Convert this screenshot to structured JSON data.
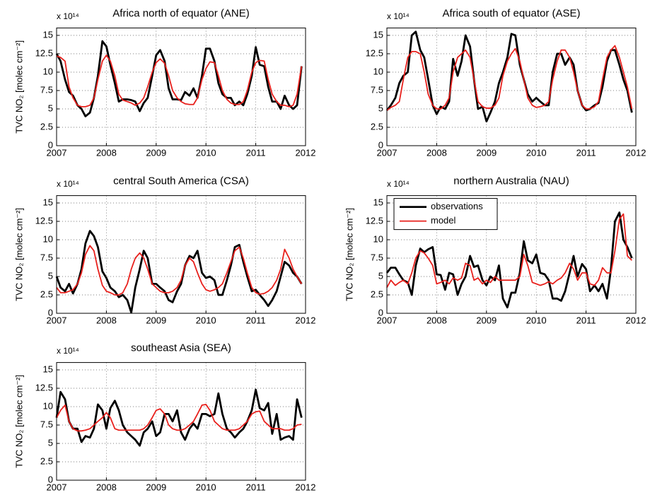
{
  "chart_data": [
    {
      "type": "line",
      "title": "Africa north of equator (ANE)",
      "y_label": "TVC NO₂ [molec cm⁻²]",
      "y_multiplier": "x 10¹⁴",
      "x": [
        2007,
        2007.08,
        2007.17,
        2007.25,
        2007.33,
        2007.42,
        2007.5,
        2007.58,
        2007.67,
        2007.75,
        2007.83,
        2007.92,
        2008,
        2008.08,
        2008.17,
        2008.25,
        2008.33,
        2008.42,
        2008.5,
        2008.58,
        2008.67,
        2008.75,
        2008.83,
        2008.92,
        2009,
        2009.08,
        2009.17,
        2009.25,
        2009.33,
        2009.42,
        2009.5,
        2009.58,
        2009.67,
        2009.75,
        2009.83,
        2009.92,
        2010,
        2010.08,
        2010.17,
        2010.25,
        2010.33,
        2010.42,
        2010.5,
        2010.58,
        2010.67,
        2010.75,
        2010.83,
        2010.92,
        2011,
        2011.08,
        2011.17,
        2011.25,
        2011.33,
        2011.42,
        2011.5,
        2011.58,
        2011.67,
        2011.75,
        2011.83,
        2011.92
      ],
      "series": [
        {
          "color": "#000000",
          "values": [
            12.5,
            11.5,
            9,
            7.3,
            6.8,
            5.5,
            5,
            4,
            4.5,
            6.5,
            9.5,
            14.2,
            13.5,
            11,
            8.5,
            6,
            6.3,
            6.3,
            6.2,
            6,
            4.7,
            5.8,
            6.5,
            9.5,
            12.3,
            13,
            11.5,
            7.8,
            6.3,
            6.3,
            6.2,
            7.3,
            6.8,
            7.8,
            6.5,
            9.5,
            13.2,
            13.2,
            11.5,
            8.5,
            7,
            6.5,
            6.5,
            5.5,
            6,
            5.5,
            7,
            9.5,
            13.4,
            11,
            10.8,
            8,
            6,
            6,
            5,
            6.8,
            5.5,
            5,
            5.5,
            10.8
          ]
        },
        {
          "color": "#e8201c",
          "values": [
            12.2,
            12,
            11.5,
            8,
            6.5,
            5.5,
            5.3,
            5.3,
            5.5,
            6.5,
            9,
            11.5,
            12.3,
            11.5,
            9.5,
            7,
            6.2,
            6,
            5.8,
            5.5,
            5.8,
            6.5,
            8,
            10,
            11.3,
            11.8,
            11.2,
            9.5,
            7.5,
            6.5,
            6,
            5.7,
            5.6,
            5.6,
            6.5,
            9,
            10.5,
            11.4,
            11.3,
            9.5,
            7.5,
            6.3,
            5.8,
            5.6,
            5.6,
            6,
            7.5,
            10,
            11.3,
            11.6,
            11.5,
            9,
            7,
            6,
            5.5,
            5.5,
            5.3,
            5.5,
            7,
            10.8
          ]
        }
      ],
      "xlim": [
        2007,
        2012
      ],
      "xticks": [
        2007,
        2008,
        2009,
        2010,
        2011,
        2012
      ],
      "ylim": [
        0,
        16
      ],
      "yticks": [
        0,
        2.5,
        5,
        7.5,
        10,
        12.5,
        15
      ],
      "grid": true
    },
    {
      "type": "line",
      "title": "Africa south of equator (ASE)",
      "y_multiplier": "x 10¹⁴",
      "x": [
        2007,
        2007.08,
        2007.17,
        2007.25,
        2007.33,
        2007.42,
        2007.5,
        2007.58,
        2007.67,
        2007.75,
        2007.83,
        2007.92,
        2008,
        2008.08,
        2008.17,
        2008.25,
        2008.33,
        2008.42,
        2008.5,
        2008.58,
        2008.67,
        2008.75,
        2008.83,
        2008.92,
        2009,
        2009.08,
        2009.17,
        2009.25,
        2009.33,
        2009.42,
        2009.5,
        2009.58,
        2009.67,
        2009.75,
        2009.83,
        2009.92,
        2010,
        2010.08,
        2010.17,
        2010.25,
        2010.33,
        2010.42,
        2010.5,
        2010.58,
        2010.67,
        2010.75,
        2010.83,
        2010.92,
        2011,
        2011.08,
        2011.17,
        2011.25,
        2011.33,
        2011.42,
        2011.5,
        2011.58,
        2011.67,
        2011.75,
        2011.83,
        2011.92
      ],
      "series": [
        {
          "color": "#000000",
          "values": [
            4.8,
            5.5,
            6.5,
            8.5,
            9.5,
            10,
            15,
            15.5,
            13,
            12,
            9,
            5.5,
            4.3,
            5.3,
            5,
            6,
            11.8,
            9.5,
            11.5,
            15,
            13.5,
            9,
            5,
            5.3,
            3.3,
            4.5,
            6,
            8.5,
            10,
            12,
            15.2,
            15,
            11,
            9,
            7,
            6,
            6.5,
            6,
            5.5,
            5.5,
            10,
            12.5,
            12.5,
            11,
            12,
            11,
            7.5,
            5.5,
            4.8,
            5,
            5.5,
            5.8,
            8,
            11.5,
            13,
            13,
            11,
            9,
            7.5,
            4.5
          ]
        },
        {
          "color": "#e8201c",
          "values": [
            4.8,
            5.2,
            5.5,
            6,
            9,
            12,
            12.8,
            12.8,
            12.5,
            10,
            7,
            5.5,
            5,
            5,
            5.5,
            6.5,
            10,
            12,
            12.5,
            13,
            12,
            9,
            6,
            5.3,
            5.1,
            5.1,
            5.5,
            6.5,
            9.5,
            11.5,
            12.5,
            13.2,
            11.5,
            9,
            6.5,
            5.5,
            5.2,
            5.3,
            5.5,
            6,
            9,
            11.5,
            13,
            13,
            12,
            10,
            7.5,
            5.5,
            5,
            5,
            5.3,
            6,
            9,
            12,
            13,
            13.6,
            12,
            10,
            8,
            5
          ]
        }
      ],
      "xlim": [
        2007,
        2012
      ],
      "xticks": [
        2007,
        2008,
        2009,
        2010,
        2011,
        2012
      ],
      "ylim": [
        0,
        16
      ],
      "yticks": [
        0,
        2.5,
        5,
        7.5,
        10,
        12.5,
        15
      ],
      "grid": true
    },
    {
      "type": "line",
      "title": "central South America (CSA)",
      "y_label": "TVC NO₂ [molec cm⁻²]",
      "y_multiplier": "x 10¹⁴",
      "x": [
        2007,
        2007.08,
        2007.17,
        2007.25,
        2007.33,
        2007.42,
        2007.5,
        2007.58,
        2007.67,
        2007.75,
        2007.83,
        2007.92,
        2008,
        2008.08,
        2008.17,
        2008.25,
        2008.33,
        2008.42,
        2008.5,
        2008.58,
        2008.67,
        2008.75,
        2008.83,
        2008.92,
        2009,
        2009.08,
        2009.17,
        2009.25,
        2009.33,
        2009.42,
        2009.5,
        2009.58,
        2009.67,
        2009.75,
        2009.83,
        2009.92,
        2010,
        2010.08,
        2010.17,
        2010.25,
        2010.33,
        2010.42,
        2010.5,
        2010.58,
        2010.67,
        2010.75,
        2010.83,
        2010.92,
        2011,
        2011.08,
        2011.17,
        2011.25,
        2011.33,
        2011.42,
        2011.5,
        2011.58,
        2011.67,
        2011.75,
        2011.83,
        2011.92
      ],
      "series": [
        {
          "color": "#000000",
          "values": [
            5,
            3.5,
            3,
            4,
            2.7,
            4,
            6,
            9.5,
            11.2,
            10.5,
            9,
            5.7,
            4.8,
            3.5,
            3,
            2.2,
            2.5,
            1.8,
            0.1,
            3.5,
            6,
            8.5,
            7.5,
            4,
            4,
            3.5,
            3,
            1.8,
            1.5,
            3,
            4,
            6.5,
            7.8,
            7.5,
            8.5,
            5.5,
            4.8,
            5,
            4.5,
            2.5,
            2.5,
            4.5,
            6.5,
            9,
            9.3,
            7,
            5,
            3,
            3.2,
            2.5,
            1.8,
            1,
            1.8,
            3,
            5,
            7,
            6.5,
            5.5,
            5,
            4
          ]
        },
        {
          "color": "#e8201c",
          "values": [
            3.5,
            2.8,
            2.8,
            3,
            3.2,
            4,
            5.5,
            8,
            9.2,
            8.5,
            6,
            3.8,
            3,
            2.8,
            2.5,
            2.5,
            2.8,
            4,
            6,
            7.5,
            8.2,
            7.5,
            6,
            4,
            3.5,
            3,
            2.8,
            2.8,
            3,
            3.5,
            4.5,
            6.5,
            7.5,
            7,
            5.5,
            4,
            3.2,
            3,
            3.2,
            3.5,
            4,
            5.5,
            7,
            8.5,
            9,
            7.5,
            5.5,
            3.5,
            2.8,
            2.6,
            2.7,
            3,
            3.5,
            4.5,
            6,
            8.7,
            7.5,
            6,
            5,
            4
          ]
        }
      ],
      "xlim": [
        2007,
        2012
      ],
      "xticks": [
        2007,
        2008,
        2009,
        2010,
        2011,
        2012
      ],
      "ylim": [
        0,
        16
      ],
      "yticks": [
        0,
        2.5,
        5,
        7.5,
        10,
        12.5,
        15
      ],
      "grid": true
    },
    {
      "type": "line",
      "title": "northern Australia (NAU)",
      "y_label": "TVC NO₂ [molec cm⁻²]",
      "y_multiplier": "x 10¹⁴",
      "legend": "upper left",
      "x": [
        2007,
        2007.08,
        2007.17,
        2007.25,
        2007.33,
        2007.42,
        2007.5,
        2007.58,
        2007.67,
        2007.75,
        2007.83,
        2007.92,
        2008,
        2008.08,
        2008.17,
        2008.25,
        2008.33,
        2008.42,
        2008.5,
        2008.58,
        2008.67,
        2008.75,
        2008.83,
        2008.92,
        2009,
        2009.08,
        2009.17,
        2009.25,
        2009.33,
        2009.42,
        2009.5,
        2009.58,
        2009.67,
        2009.75,
        2009.83,
        2009.92,
        2010,
        2010.08,
        2010.17,
        2010.25,
        2010.33,
        2010.42,
        2010.5,
        2010.58,
        2010.67,
        2010.75,
        2010.83,
        2010.92,
        2011,
        2011.08,
        2011.17,
        2011.25,
        2011.33,
        2011.42,
        2011.5,
        2011.58,
        2011.67,
        2011.75,
        2011.83,
        2011.92
      ],
      "series": [
        {
          "name": "observations",
          "color": "#000000",
          "values": [
            5.5,
            6.2,
            6.2,
            5.3,
            4.5,
            4.2,
            2.5,
            6.5,
            8.8,
            8.3,
            8.7,
            9,
            5.3,
            5.2,
            3.2,
            5.5,
            5.3,
            2.5,
            4,
            5,
            7.8,
            6.3,
            6.5,
            4.5,
            3.8,
            5,
            4.5,
            6.5,
            2,
            0.8,
            2.8,
            2.8,
            5.5,
            9.8,
            7.2,
            6.8,
            8,
            5.5,
            5.3,
            4.5,
            2,
            2,
            1.7,
            3,
            5.5,
            7.8,
            5,
            6.7,
            6,
            3,
            3.8,
            3,
            4,
            2,
            6,
            12.5,
            13.7,
            10,
            9,
            7.5
          ]
        },
        {
          "name": "model",
          "color": "#e8201c",
          "values": [
            3.5,
            4.5,
            3.8,
            4.2,
            4.5,
            4,
            5.5,
            7.5,
            8.5,
            8.2,
            7.5,
            6.5,
            4,
            4.2,
            4.5,
            4,
            4.8,
            4.5,
            4.8,
            6.8,
            6.5,
            4.5,
            4.8,
            4,
            4.5,
            4.2,
            5,
            4.5,
            4.5,
            4.5,
            4.5,
            4.5,
            5,
            8,
            6.5,
            4.2,
            4,
            3.8,
            4,
            4.3,
            4,
            4.5,
            4.8,
            5.5,
            6.8,
            6,
            4.5,
            5.5,
            5.5,
            4,
            3.8,
            4.5,
            6.2,
            5.5,
            5.5,
            8.5,
            12.8,
            13.5,
            7.8,
            7.2
          ]
        }
      ],
      "xlim": [
        2007,
        2012
      ],
      "xticks": [
        2007,
        2008,
        2009,
        2010,
        2011,
        2012
      ],
      "ylim": [
        0,
        16
      ],
      "yticks": [
        0,
        2.5,
        5,
        7.5,
        10,
        12.5,
        15
      ],
      "grid": true
    },
    {
      "type": "line",
      "title": "southeast Asia (SEA)",
      "y_label": "TVC NO₂ [molec cm⁻²]",
      "y_multiplier": "x 10¹⁴",
      "x": [
        2007,
        2007.08,
        2007.17,
        2007.25,
        2007.33,
        2007.42,
        2007.5,
        2007.58,
        2007.67,
        2007.75,
        2007.83,
        2007.92,
        2008,
        2008.08,
        2008.17,
        2008.25,
        2008.33,
        2008.42,
        2008.5,
        2008.58,
        2008.67,
        2008.75,
        2008.83,
        2008.92,
        2009,
        2009.08,
        2009.17,
        2009.25,
        2009.33,
        2009.42,
        2009.5,
        2009.58,
        2009.67,
        2009.75,
        2009.83,
        2009.92,
        2010,
        2010.08,
        2010.17,
        2010.25,
        2010.33,
        2010.42,
        2010.5,
        2010.58,
        2010.67,
        2010.75,
        2010.83,
        2010.92,
        2011,
        2011.08,
        2011.17,
        2011.25,
        2011.33,
        2011.42,
        2011.5,
        2011.58,
        2011.67,
        2011.75,
        2011.83,
        2011.92
      ],
      "series": [
        {
          "color": "#000000",
          "values": [
            8.5,
            12,
            11,
            8,
            7,
            7,
            5.2,
            6,
            5.8,
            7,
            10.3,
            9.5,
            7,
            9.8,
            10.8,
            9.5,
            7.5,
            6.5,
            6,
            5.5,
            4.7,
            6.5,
            7,
            8,
            6,
            6.5,
            9,
            9,
            8,
            9.5,
            6.5,
            5.5,
            7,
            7.7,
            7,
            9,
            9,
            8.7,
            9,
            11.8,
            9,
            7,
            6.5,
            5.8,
            6.5,
            7,
            8,
            9.5,
            12.3,
            9.8,
            9.5,
            10.5,
            6.3,
            9,
            5.5,
            5.8,
            6,
            5.5,
            11,
            8.5
          ]
        },
        {
          "color": "#e8201c",
          "values": [
            8.5,
            9.5,
            10.2,
            8,
            7,
            6.7,
            6.7,
            6.8,
            7,
            7.5,
            8,
            8.5,
            9.2,
            8.5,
            7,
            6.8,
            6.8,
            6.8,
            6.8,
            6.8,
            6.8,
            7,
            7.5,
            8.5,
            9.5,
            9.7,
            9,
            7.5,
            7,
            6.8,
            6.8,
            7,
            7.5,
            8,
            9,
            10.2,
            10.3,
            9.5,
            8,
            7.5,
            7,
            6.8,
            6.8,
            6.8,
            7,
            7.5,
            8,
            9,
            9.3,
            9.4,
            8,
            7.5,
            7,
            7,
            7,
            6.8,
            6.8,
            7,
            7.5,
            7.6
          ]
        }
      ],
      "xlim": [
        2007,
        2012
      ],
      "xticks": [
        2007,
        2008,
        2009,
        2010,
        2011,
        2012
      ],
      "ylim": [
        0,
        16
      ],
      "yticks": [
        0,
        2.5,
        5,
        7.5,
        10,
        12.5,
        15
      ],
      "grid": true
    }
  ]
}
